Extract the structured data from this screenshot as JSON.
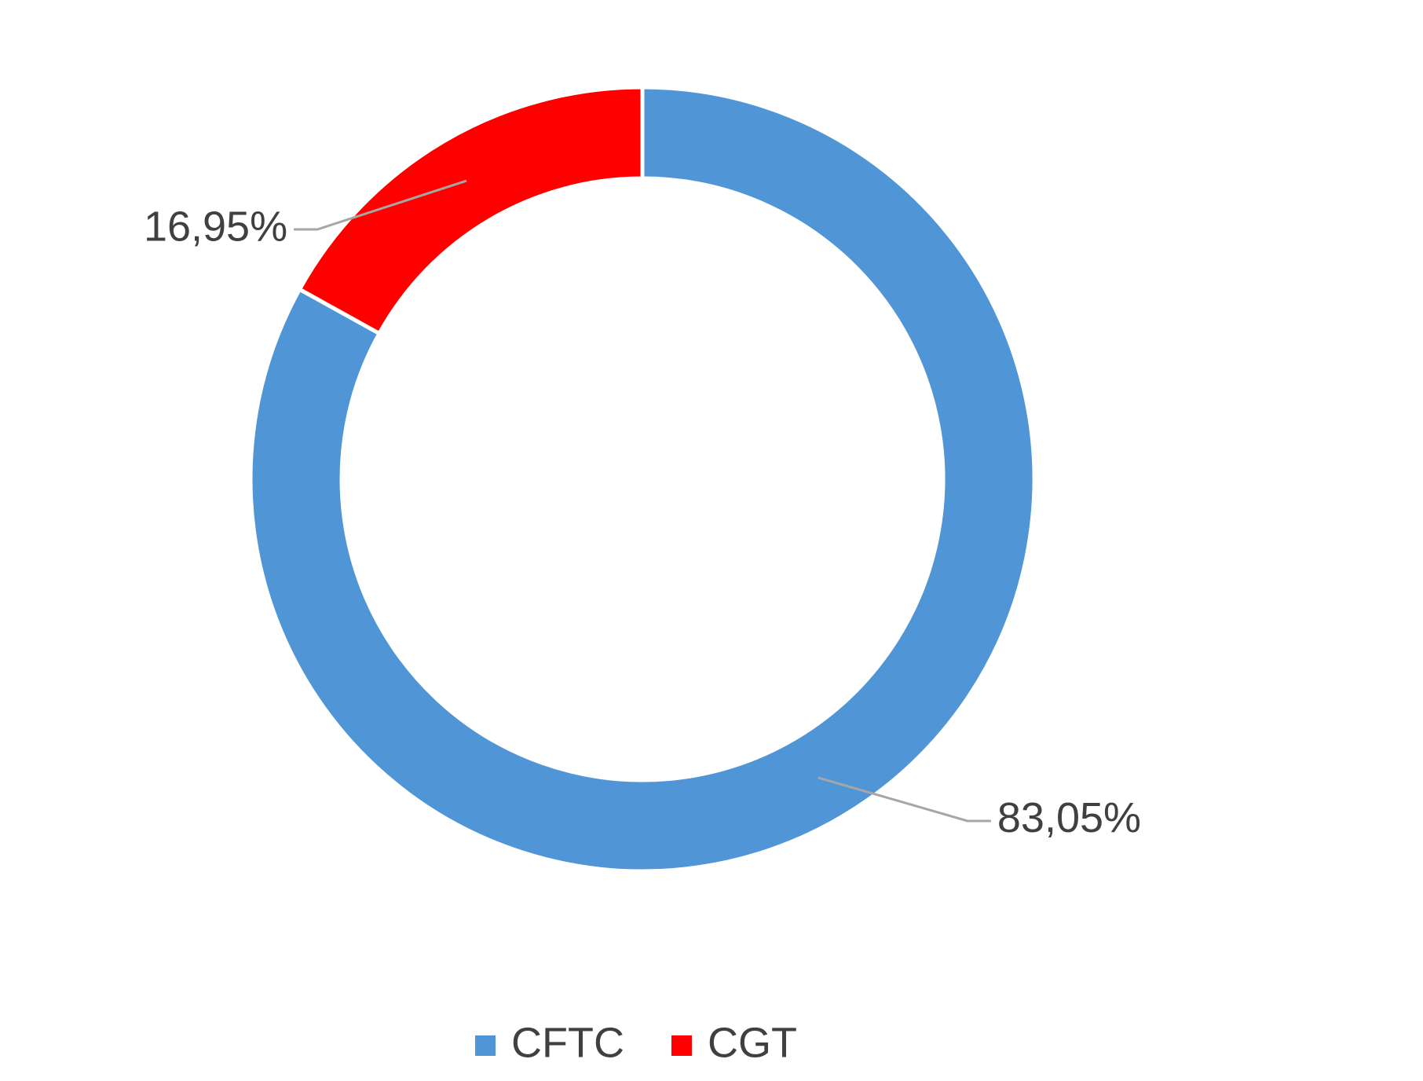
{
  "chart_data": {
    "type": "donut",
    "categories": [
      "CFTC",
      "CGT"
    ],
    "values": [
      83.05,
      16.95
    ],
    "value_labels": [
      "83,05%",
      "16,95%"
    ],
    "colors": [
      "#5096d7",
      "#ff0000"
    ],
    "legend": "bottom"
  }
}
